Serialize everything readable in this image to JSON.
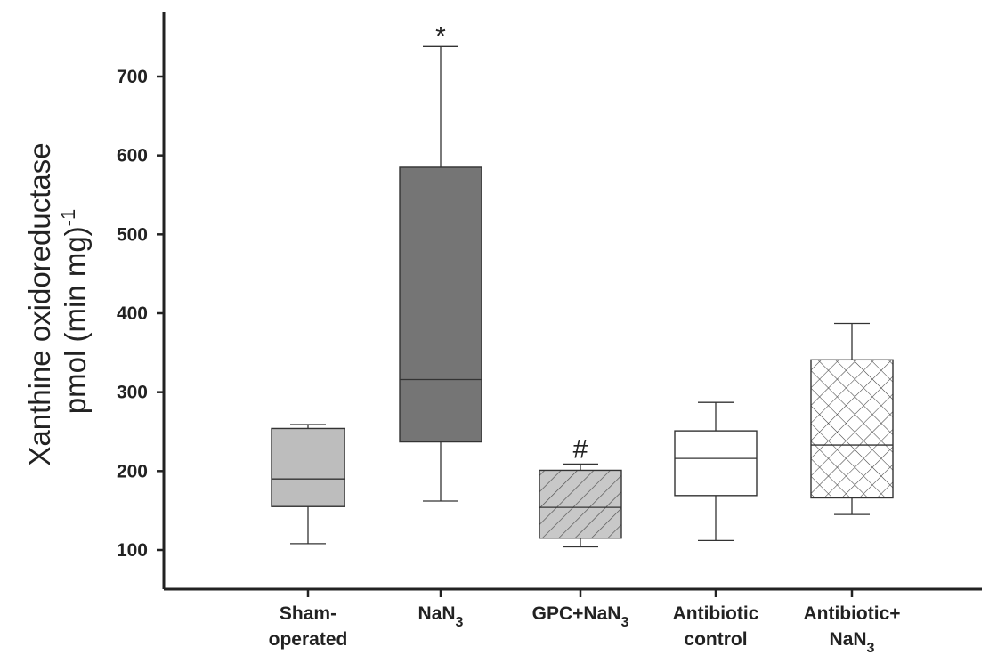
{
  "chart_data": {
    "type": "box",
    "ylabel": [
      "Xanthine oxidoreductase",
      "pmol (min mg)",
      "-1"
    ],
    "yticks": [
      100,
      200,
      300,
      400,
      500,
      600,
      700
    ],
    "ylim": [
      50,
      790
    ],
    "grid": false,
    "categories": [
      [
        "Sham-",
        "operated"
      ],
      [
        "NaN",
        "3",
        ""
      ],
      [
        "GPC+NaN",
        "3",
        ""
      ],
      [
        "Antibiotic",
        "control"
      ],
      [
        "Antibiotic+",
        "NaN",
        "3"
      ]
    ],
    "boxes": [
      {
        "whisker_low": 108,
        "q1": 155,
        "median": 190,
        "q3": 254,
        "whisker_high": 259,
        "fill": "#bdbdbd",
        "pattern": "none",
        "annotation": ""
      },
      {
        "whisker_low": 162,
        "q1": 237,
        "median": 316,
        "q3": 585,
        "whisker_high": 738,
        "fill": "#757575",
        "pattern": "none",
        "annotation": "*"
      },
      {
        "whisker_low": 104,
        "q1": 115,
        "median": 154,
        "q3": 201,
        "whisker_high": 209,
        "fill": "#c8c8c8",
        "pattern": "diagonal-hatch",
        "annotation": "#"
      },
      {
        "whisker_low": 112,
        "q1": 169,
        "median": 216,
        "q3": 251,
        "whisker_high": 287,
        "fill": "#ffffff",
        "pattern": "none",
        "annotation": ""
      },
      {
        "whisker_low": 145,
        "q1": 166,
        "median": 233,
        "q3": 341,
        "whisker_high": 387,
        "fill": "#ffffff",
        "pattern": "cross-hatch",
        "annotation": ""
      }
    ],
    "colors": {
      "axis": "#222222",
      "stroke": "#333333"
    }
  }
}
